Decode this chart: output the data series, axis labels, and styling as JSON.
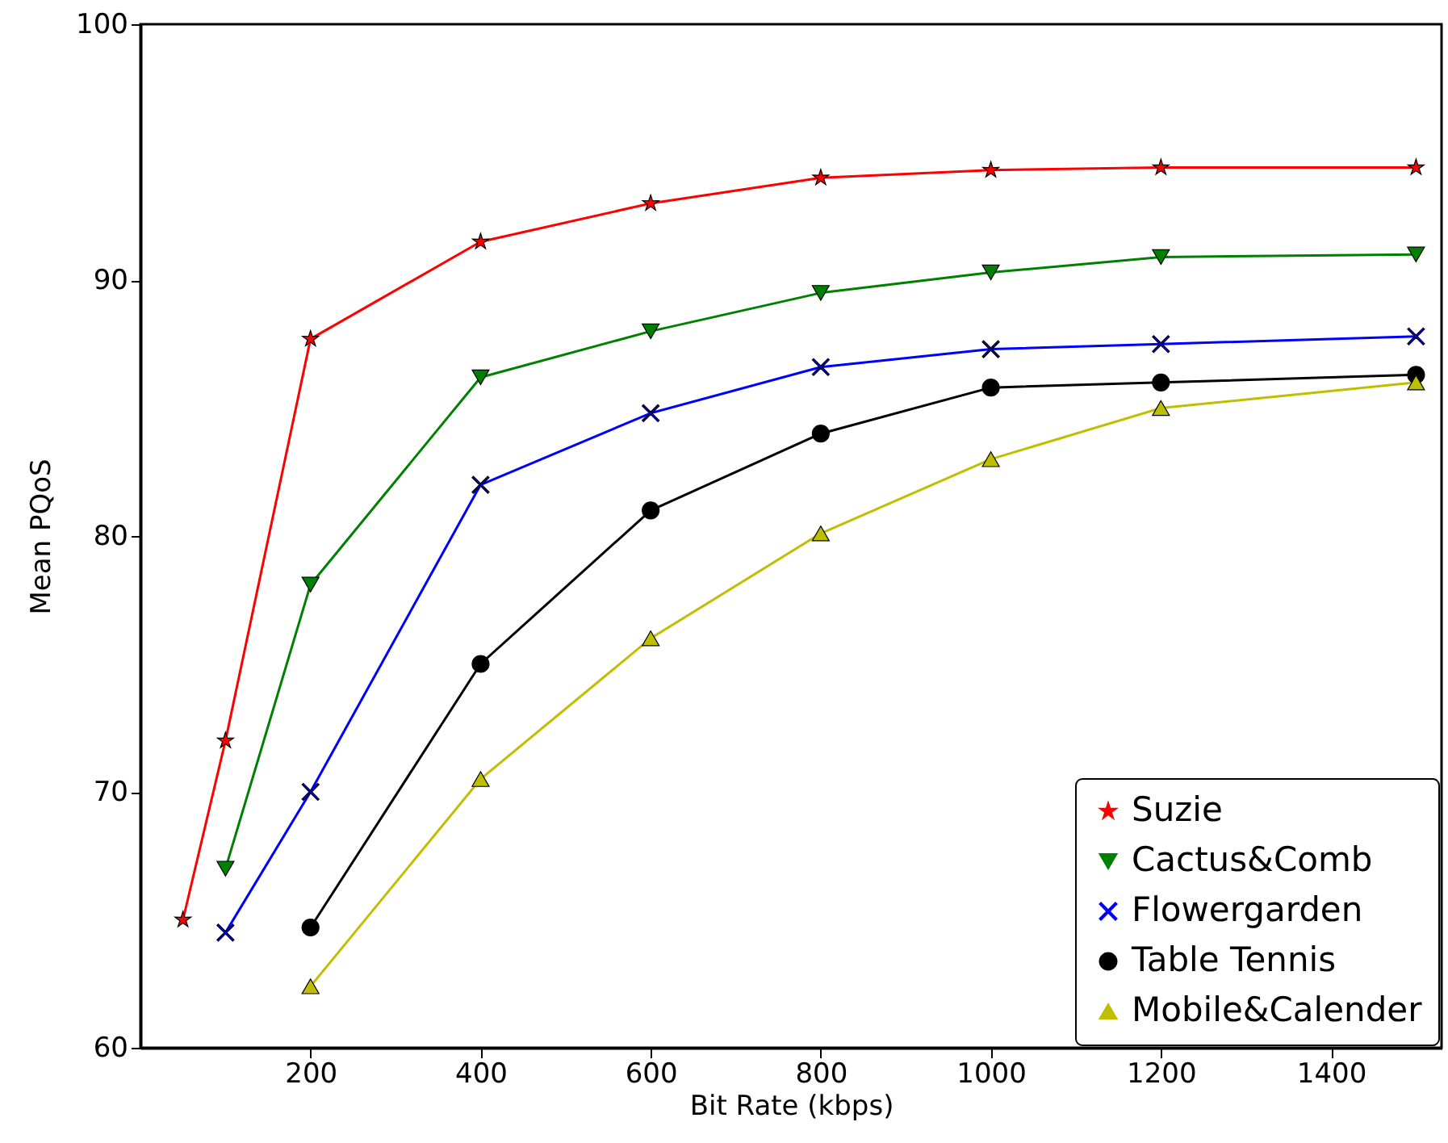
{
  "chart_data": {
    "type": "line",
    "xlabel": "Bit Rate (kbps)",
    "ylabel": "Mean PQoS",
    "xlim": [
      0,
      1530
    ],
    "ylim": [
      60,
      100
    ],
    "xticks": [
      200,
      400,
      600,
      800,
      1000,
      1200,
      1400
    ],
    "yticks": [
      60,
      70,
      80,
      90,
      100
    ],
    "grid": false,
    "legend": "bottom right",
    "line_style": "solid",
    "series": [
      {
        "name": "Suzie",
        "color": "#ff0000",
        "marker": "star",
        "x": [
          50,
          100,
          200,
          400,
          600,
          800,
          1000,
          1200,
          1500
        ],
        "values": [
          65,
          72,
          87.7,
          91.5,
          93,
          94,
          94.3,
          94.4,
          94.4
        ]
      },
      {
        "name": "Cactus&Comb",
        "color": "#008000",
        "marker": "triangle-down",
        "x": [
          100,
          200,
          400,
          600,
          800,
          1000,
          1200,
          1500
        ],
        "values": [
          67,
          78.1,
          86.2,
          88,
          89.5,
          90.3,
          90.9,
          91
        ]
      },
      {
        "name": "Flowergarden",
        "color": "#0000ff",
        "marker": "cross",
        "x": [
          100,
          200,
          400,
          600,
          800,
          1000,
          1200,
          1500
        ],
        "values": [
          64.5,
          70,
          82,
          84.8,
          86.6,
          87.3,
          87.5,
          87.8
        ]
      },
      {
        "name": "Table Tennis",
        "color": "#000000",
        "marker": "circle",
        "x": [
          200,
          400,
          600,
          800,
          1000,
          1200,
          1500
        ],
        "values": [
          64.7,
          75,
          81,
          84,
          85.8,
          86,
          86.3
        ]
      },
      {
        "name": "Mobile&Calender",
        "color": "#bfbf00",
        "marker": "triangle",
        "x": [
          200,
          400,
          600,
          800,
          1000,
          1200,
          1500
        ],
        "values": [
          62.4,
          70.5,
          76,
          80.1,
          83,
          85,
          86
        ]
      }
    ]
  }
}
